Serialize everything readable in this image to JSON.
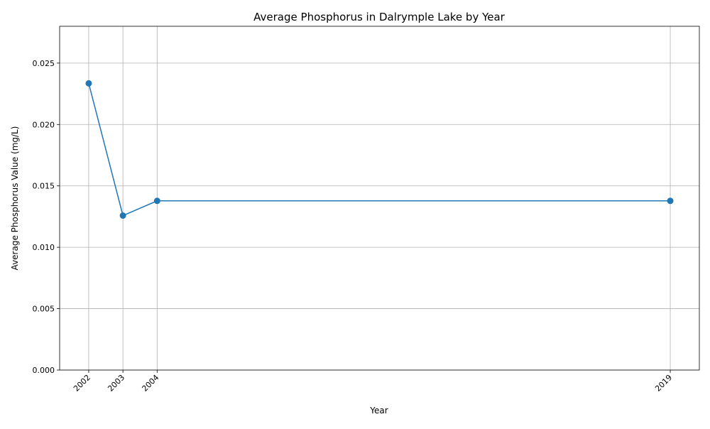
{
  "chart_data": {
    "type": "line",
    "title": "Average Phosphorus in Dalrymple Lake by Year",
    "xlabel": "Year",
    "ylabel": "Average Phosphorus Value (mg/L)",
    "x": [
      2002,
      2003,
      2004,
      2019
    ],
    "x_tick_labels": [
      "2002",
      "2003",
      "2004",
      "2019"
    ],
    "series": [
      {
        "values": [
          0.02335,
          0.01258,
          0.01378,
          0.01378
        ],
        "color": "#1f77b4",
        "marker": "circle"
      }
    ],
    "xlim": [
      2001.15,
      2019.85
    ],
    "ylim": [
      0,
      0.028
    ],
    "y_ticks": [
      0,
      0.005,
      0.01,
      0.015,
      0.02,
      0.025
    ],
    "y_tick_labels": [
      "0.000",
      "0.005",
      "0.010",
      "0.015",
      "0.020",
      "0.025"
    ],
    "grid": true,
    "legend": "none"
  }
}
